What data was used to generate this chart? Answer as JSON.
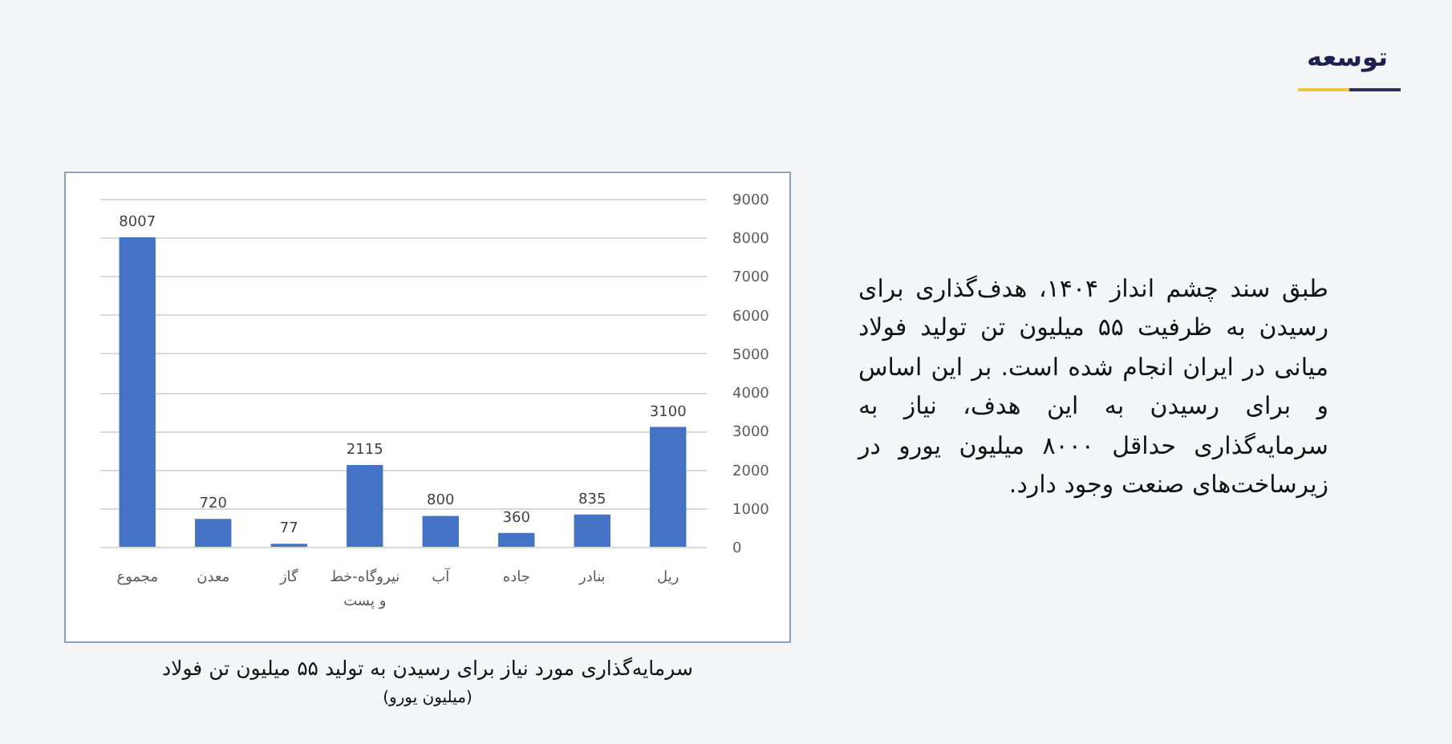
{
  "chart_data": {
    "type": "bar",
    "title": "سرمایه‌گذاری مورد نیاز برای رسیدن به تولید ۵۵ میلیون تن فولاد",
    "subtitle": "(میلیون یورو)",
    "annotations": [
      "توسعه",
      "طبق سند چشم انداز ۱۴۰۴، هدف‌گذاری برای رسیدن به ظرفیت ۵۵ میلیون تن تولید فولاد میانی در ایران انجام شده است. بر این اساس و برای رسیدن به این هدف، نیاز به سرمایه‌گذاری حداقل ۸۰۰۰ میلیون یورو در زیرساخت‌های صنعت وجود دارد."
    ],
    "categories": [
      "مجموع",
      "معدن",
      "گاز",
      "نیروگاه-خط و پست",
      "آب",
      "جاده",
      "بنادر",
      "ریل"
    ],
    "values": [
      8007,
      720,
      77,
      2115,
      800,
      360,
      835,
      3100
    ],
    "color": "#4472c4",
    "ylim": [
      0,
      9000
    ],
    "yticks": [
      0,
      1000,
      2000,
      3000,
      4000,
      5000,
      6000,
      7000,
      8000,
      9000
    ],
    "grid": "y",
    "data_labels": true
  }
}
